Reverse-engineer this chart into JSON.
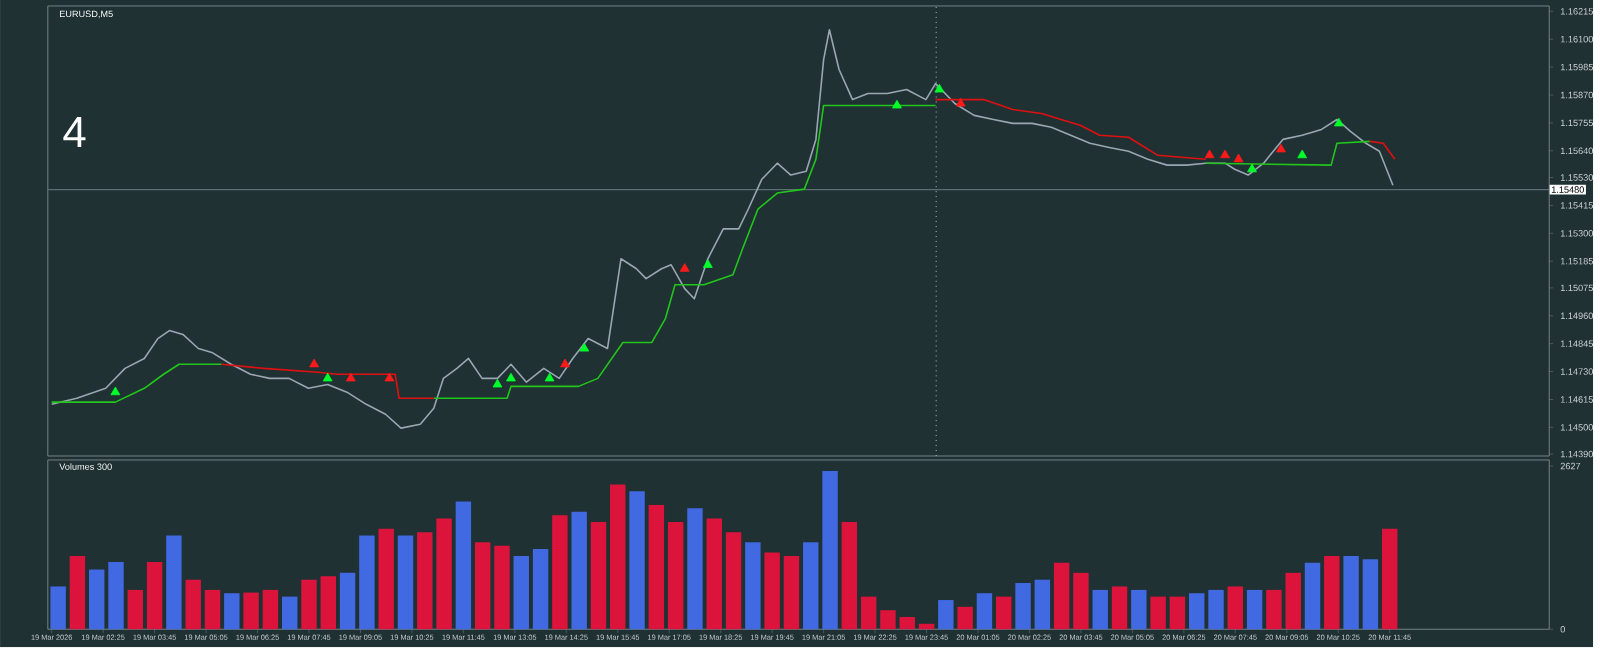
{
  "chart_data": [
    {
      "type": "line",
      "title": "EURUSD,M5",
      "annotations": [
        "4"
      ],
      "xlim": [
        "2026-03-19T00:59",
        "2026-03-20T15:53"
      ],
      "ylim": [
        1.14382,
        1.16237
      ],
      "tick_labels": "y",
      "yticks": [
        {
          "value": 1.16215,
          "label": "1.16215"
        },
        {
          "value": 1.161,
          "label": "1.16100"
        },
        {
          "value": 1.15985,
          "label": "1.15985"
        },
        {
          "value": 1.1587,
          "label": "1.15870"
        },
        {
          "value": 1.15755,
          "label": "1.15755"
        },
        {
          "value": 1.1564,
          "label": "1.15640"
        },
        {
          "value": 1.1553,
          "label": "1.15530"
        },
        {
          "value": 1.15415,
          "label": "1.15415"
        },
        {
          "value": 1.153,
          "label": "1.15300"
        },
        {
          "value": 1.15185,
          "label": "1.15185"
        },
        {
          "value": 1.15075,
          "label": "1.15075"
        },
        {
          "value": 1.1496,
          "label": "1.14960"
        },
        {
          "value": 1.14845,
          "label": "1.14845"
        },
        {
          "value": 1.1473,
          "label": "1.14730"
        },
        {
          "value": 1.14615,
          "label": "1.14615"
        },
        {
          "value": 1.145,
          "label": "1.14500"
        },
        {
          "value": 1.1439,
          "label": "1.14390"
        }
      ],
      "ref_lines": [
        {
          "axis": "y",
          "value": 1.1548,
          "label": "1.15480",
          "color": "#5a6e74"
        },
        {
          "axis": "x",
          "value": "2026-03-20T00:00",
          "color": "#b8c0c4",
          "line_style": "dotted"
        }
      ],
      "series": [
        {
          "type": "line",
          "color": "#9aa6b2",
          "x": [
            "2026-03-19T01:05",
            "2026-03-19T01:44",
            "2026-03-19T02:29",
            "2026-03-19T02:59",
            "2026-03-19T03:29",
            "2026-03-19T03:50",
            "2026-03-19T04:08",
            "2026-03-19T04:29",
            "2026-03-19T04:53",
            "2026-03-19T05:14",
            "2026-03-19T05:44",
            "2026-03-19T06:14",
            "2026-03-19T06:44",
            "2026-03-19T07:14",
            "2026-03-19T07:44",
            "2026-03-19T08:14",
            "2026-03-19T08:44",
            "2026-03-19T09:14",
            "2026-03-19T09:44",
            "2026-03-19T10:08",
            "2026-03-19T10:38",
            "2026-03-19T10:59",
            "2026-03-19T11:14",
            "2026-03-19T11:35",
            "2026-03-19T11:53",
            "2026-03-19T12:14",
            "2026-03-19T12:38",
            "2026-03-19T12:59",
            "2026-03-19T13:23",
            "2026-03-19T13:50",
            "2026-03-19T14:14",
            "2026-03-19T14:35",
            "2026-03-19T14:59",
            "2026-03-19T15:29",
            "2026-03-19T15:50",
            "2026-03-19T16:14",
            "2026-03-19T16:29",
            "2026-03-19T16:53",
            "2026-03-19T17:08",
            "2026-03-19T17:29",
            "2026-03-19T17:44",
            "2026-03-19T18:05",
            "2026-03-19T18:29",
            "2026-03-19T18:53",
            "2026-03-19T19:08",
            "2026-03-19T19:29",
            "2026-03-19T19:53",
            "2026-03-19T20:14",
            "2026-03-19T20:38",
            "2026-03-19T20:53",
            "2026-03-19T21:05",
            "2026-03-19T21:14",
            "2026-03-19T21:29",
            "2026-03-19T21:50",
            "2026-03-19T22:14",
            "2026-03-19T22:44",
            "2026-03-19T23:14",
            "2026-03-19T23:44",
            "2026-03-19T23:59",
            "2026-03-20T00:29",
            "2026-03-20T00:59",
            "2026-03-20T01:29",
            "2026-03-20T01:59",
            "2026-03-20T02:29",
            "2026-03-20T02:59",
            "2026-03-20T03:29",
            "2026-03-20T03:59",
            "2026-03-20T04:29",
            "2026-03-20T04:59",
            "2026-03-20T05:29",
            "2026-03-20T05:59",
            "2026-03-20T06:29",
            "2026-03-20T06:59",
            "2026-03-20T07:29",
            "2026-03-20T07:44",
            "2026-03-20T08:05",
            "2026-03-20T08:29",
            "2026-03-20T08:59",
            "2026-03-20T09:29",
            "2026-03-20T09:59",
            "2026-03-20T10:23",
            "2026-03-20T10:44",
            "2026-03-20T11:08",
            "2026-03-20T11:29",
            "2026-03-20T11:50"
          ],
          "values": [
            1.14595,
            1.1462,
            1.14661,
            1.14743,
            1.14784,
            1.14866,
            1.14899,
            1.14883,
            1.14825,
            1.14809,
            1.1476,
            1.14719,
            1.14702,
            1.14702,
            1.14661,
            1.14677,
            1.14645,
            1.14595,
            1.14554,
            1.14497,
            1.14513,
            1.14579,
            1.14702,
            1.14743,
            1.14784,
            1.14702,
            1.14702,
            1.1476,
            1.14686,
            1.14743,
            1.14702,
            1.14784,
            1.14866,
            1.14825,
            1.15195,
            1.15154,
            1.15113,
            1.15154,
            1.1517,
            1.15072,
            1.1503,
            1.15195,
            1.15318,
            1.15318,
            1.154,
            1.15523,
            1.15589,
            1.1554,
            1.15556,
            1.15687,
            1.16016,
            1.16139,
            1.15975,
            1.15851,
            1.15876,
            1.15876,
            1.15893,
            1.15851,
            1.15917,
            1.15835,
            1.15786,
            1.15769,
            1.15753,
            1.15753,
            1.15737,
            1.15704,
            1.15671,
            1.15654,
            1.15638,
            1.15605,
            1.15581,
            1.15581,
            1.15589,
            1.15589,
            1.15564,
            1.1554,
            1.15589,
            1.15687,
            1.15704,
            1.15728,
            1.15769,
            1.1572,
            1.15671,
            1.15638,
            1.15498
          ]
        },
        {
          "type": "line",
          "color": "#22c61a",
          "x": [
            "2026-03-19T01:05",
            "2026-03-19T02:44",
            "2026-03-19T03:29",
            "2026-03-19T03:59",
            "2026-03-19T04:23",
            "2026-03-19T05:29",
            "2026-03-19T08:00",
            "2026-03-19T10:59",
            "2026-03-19T12:53",
            "2026-03-19T12:59",
            "2026-03-19T14:44",
            "2026-03-19T15:14",
            "2026-03-19T15:53",
            "2026-03-19T16:38",
            "2026-03-19T16:59",
            "2026-03-19T17:14",
            "2026-03-19T17:59",
            "2026-03-19T18:44",
            "2026-03-19T18:59",
            "2026-03-19T19:23",
            "2026-03-19T19:53",
            "2026-03-19T20:35",
            "2026-03-19T20:53",
            "2026-03-19T21:05",
            "2026-03-19T23:59",
            "2026-03-20T03:00",
            "2026-03-20T06:59",
            "2026-03-20T10:14",
            "2026-03-20T10:23",
            "2026-03-20T11:14"
          ],
          "values": [
            1.14604,
            1.14604,
            1.14661,
            1.14719,
            1.1476,
            1.1476,
            null,
            1.1462,
            1.1462,
            1.14669,
            1.14669,
            1.14702,
            1.1485,
            1.1485,
            1.14948,
            1.15088,
            1.15088,
            1.15129,
            1.15236,
            1.154,
            1.15466,
            1.15482,
            1.15605,
            1.15827,
            1.15827,
            null,
            1.15589,
            1.15581,
            1.15671,
            1.15679
          ]
        },
        {
          "type": "line",
          "color": "#e01010",
          "x": [
            "2026-03-19T05:29",
            "2026-03-19T06:35",
            "2026-03-19T07:59",
            "2026-03-19T08:29",
            "2026-03-19T09:59",
            "2026-03-19T10:05",
            "2026-03-19T10:59",
            "2026-03-19T17:00",
            "2026-03-19T23:59",
            "2026-03-20T01:14",
            "2026-03-20T01:59",
            "2026-03-20T02:44",
            "2026-03-20T03:14",
            "2026-03-20T03:44",
            "2026-03-20T04:14",
            "2026-03-20T04:59",
            "2026-03-20T05:44",
            "2026-03-20T06:59",
            "2026-03-20T09:00",
            "2026-03-20T11:14",
            "2026-03-20T11:35",
            "2026-03-20T11:53"
          ],
          "values": [
            1.1476,
            1.14743,
            1.14727,
            1.14719,
            1.14719,
            1.1462,
            1.1462,
            null,
            1.15851,
            1.15851,
            1.1581,
            1.15794,
            1.15769,
            1.15745,
            1.15704,
            1.15696,
            1.15622,
            1.15605,
            null,
            1.15679,
            1.15671,
            1.15605
          ]
        },
        {
          "type": "scatter",
          "marker": "triangle",
          "color": "#00ff2a",
          "x": [
            "2026-03-19T02:44",
            "2026-03-19T08:14",
            "2026-03-19T12:38",
            "2026-03-19T12:59",
            "2026-03-19T13:59",
            "2026-03-19T14:53",
            "2026-03-19T18:05",
            "2026-03-19T22:59",
            "2026-03-20T00:05",
            "2026-03-20T08:11",
            "2026-03-20T09:29",
            "2026-03-20T10:26"
          ],
          "values": [
            1.14645,
            1.14702,
            1.14677,
            1.14702,
            1.14702,
            1.14825,
            1.1517,
            1.15827,
            1.15893,
            1.15564,
            1.15622,
            1.15753
          ]
        },
        {
          "type": "scatter",
          "marker": "triangle",
          "color": "#ff1a1a",
          "x": [
            "2026-03-19T07:53",
            "2026-03-19T08:50",
            "2026-03-19T09:50",
            "2026-03-19T14:23",
            "2026-03-19T17:29",
            "2026-03-20T00:38",
            "2026-03-20T07:05",
            "2026-03-20T07:29",
            "2026-03-20T07:50",
            "2026-03-20T08:56"
          ],
          "values": [
            1.1476,
            1.14702,
            1.14702,
            1.1476,
            1.15154,
            1.15835,
            1.15622,
            1.15622,
            1.15605,
            1.15646
          ]
        }
      ]
    },
    {
      "type": "bar",
      "title": "Volumes 300",
      "xlim": [
        "2026-03-19T00:59",
        "2026-03-20T15:53"
      ],
      "ylim": [
        0,
        2725
      ],
      "yticks": [
        0,
        2627
      ],
      "xticks": [
        {
          "value": "2026-03-19T01:05",
          "label": "19 Mar 2026"
        },
        {
          "value": "2026-03-19T02:25",
          "label": "19 Mar 02:25"
        },
        {
          "value": "2026-03-19T03:45",
          "label": "19 Mar 03:45"
        },
        {
          "value": "2026-03-19T05:05",
          "label": "19 Mar 05:05"
        },
        {
          "value": "2026-03-19T06:25",
          "label": "19 Mar 06:25"
        },
        {
          "value": "2026-03-19T07:45",
          "label": "19 Mar 07:45"
        },
        {
          "value": "2026-03-19T09:05",
          "label": "19 Mar 09:05"
        },
        {
          "value": "2026-03-19T10:25",
          "label": "19 Mar 10:25"
        },
        {
          "value": "2026-03-19T11:45",
          "label": "19 Mar 11:45"
        },
        {
          "value": "2026-03-19T13:05",
          "label": "19 Mar 13:05"
        },
        {
          "value": "2026-03-19T14:25",
          "label": "19 Mar 14:25"
        },
        {
          "value": "2026-03-19T15:45",
          "label": "19 Mar 15:45"
        },
        {
          "value": "2026-03-19T17:05",
          "label": "19 Mar 17:05"
        },
        {
          "value": "2026-03-19T18:25",
          "label": "19 Mar 18:25"
        },
        {
          "value": "2026-03-19T19:45",
          "label": "19 Mar 19:45"
        },
        {
          "value": "2026-03-19T21:05",
          "label": "19 Mar 21:05"
        },
        {
          "value": "2026-03-19T22:25",
          "label": "19 Mar 22:25"
        },
        {
          "value": "2026-03-19T23:45",
          "label": "19 Mar 23:45"
        },
        {
          "value": "2026-03-20T01:05",
          "label": "20 Mar 01:05"
        },
        {
          "value": "2026-03-20T02:25",
          "label": "20 Mar 02:25"
        },
        {
          "value": "2026-03-20T03:45",
          "label": "20 Mar 03:45"
        },
        {
          "value": "2026-03-20T05:05",
          "label": "20 Mar 05:05"
        },
        {
          "value": "2026-03-20T06:25",
          "label": "20 Mar 06:25"
        },
        {
          "value": "2026-03-20T07:45",
          "label": "20 Mar 07:45"
        },
        {
          "value": "2026-03-20T09:05",
          "label": "20 Mar 09:05"
        },
        {
          "value": "2026-03-20T10:25",
          "label": "20 Mar 10:25"
        },
        {
          "value": "2026-03-20T11:45",
          "label": "20 Mar 11:45"
        }
      ],
      "x": [
        "2026-03-19T01:15",
        "2026-03-19T01:45",
        "2026-03-19T02:15",
        "2026-03-19T02:45",
        "2026-03-19T03:15",
        "2026-03-19T03:45",
        "2026-03-19T04:15",
        "2026-03-19T04:45",
        "2026-03-19T05:15",
        "2026-03-19T05:45",
        "2026-03-19T06:15",
        "2026-03-19T06:45",
        "2026-03-19T07:15",
        "2026-03-19T07:45",
        "2026-03-19T08:15",
        "2026-03-19T08:45",
        "2026-03-19T09:15",
        "2026-03-19T09:45",
        "2026-03-19T10:15",
        "2026-03-19T10:45",
        "2026-03-19T11:15",
        "2026-03-19T11:45",
        "2026-03-19T12:15",
        "2026-03-19T12:45",
        "2026-03-19T13:15",
        "2026-03-19T13:45",
        "2026-03-19T14:15",
        "2026-03-19T14:45",
        "2026-03-19T15:15",
        "2026-03-19T15:45",
        "2026-03-19T16:15",
        "2026-03-19T16:45",
        "2026-03-19T17:15",
        "2026-03-19T17:45",
        "2026-03-19T18:15",
        "2026-03-19T18:45",
        "2026-03-19T19:15",
        "2026-03-19T19:45",
        "2026-03-19T20:15",
        "2026-03-19T20:45",
        "2026-03-19T21:15",
        "2026-03-19T21:45",
        "2026-03-19T22:15",
        "2026-03-19T22:45",
        "2026-03-19T23:15",
        "2026-03-19T23:45",
        "2026-03-20T00:15",
        "2026-03-20T00:45",
        "2026-03-20T01:15",
        "2026-03-20T01:45",
        "2026-03-20T02:15",
        "2026-03-20T02:45",
        "2026-03-20T03:15",
        "2026-03-20T03:45",
        "2026-03-20T04:15",
        "2026-03-20T04:45",
        "2026-03-20T05:15",
        "2026-03-20T05:45",
        "2026-03-20T06:15",
        "2026-03-20T06:45",
        "2026-03-20T07:15",
        "2026-03-20T07:45",
        "2026-03-20T08:15",
        "2026-03-20T08:45",
        "2026-03-20T09:15",
        "2026-03-20T09:45",
        "2026-03-20T10:15",
        "2026-03-20T10:45",
        "2026-03-20T11:15",
        "2026-03-20T11:45"
      ],
      "values": [
        689,
        1181,
        961,
        1083,
        633,
        1083,
        1509,
        797,
        633,
        580,
        590,
        633,
        525,
        797,
        853,
        908,
        1509,
        1617,
        1509,
        1563,
        1781,
        2056,
        1400,
        1345,
        1181,
        1290,
        1837,
        1892,
        1728,
        2329,
        2220,
        2001,
        1728,
        1946,
        1781,
        1563,
        1400,
        1236,
        1181,
        1400,
        2548,
        1728,
        525,
        306,
        197,
        88,
        470,
        361,
        580,
        525,
        744,
        797,
        1072,
        908,
        633,
        689,
        633,
        525,
        525,
        580,
        633,
        689,
        633,
        633,
        908,
        1072,
        1181,
        1181,
        1126,
        1617
      ],
      "colors": [
        "#4169e1",
        "#dc143c",
        "#4169e1",
        "#4169e1",
        "#dc143c",
        "#dc143c",
        "#4169e1",
        "#dc143c",
        "#dc143c",
        "#4169e1",
        "#dc143c",
        "#dc143c",
        "#4169e1",
        "#dc143c",
        "#dc143c",
        "#4169e1",
        "#4169e1",
        "#dc143c",
        "#4169e1",
        "#dc143c",
        "#dc143c",
        "#4169e1",
        "#dc143c",
        "#dc143c",
        "#4169e1",
        "#4169e1",
        "#dc143c",
        "#4169e1",
        "#dc143c",
        "#dc143c",
        "#4169e1",
        "#dc143c",
        "#dc143c",
        "#4169e1",
        "#dc143c",
        "#dc143c",
        "#4169e1",
        "#dc143c",
        "#dc143c",
        "#4169e1",
        "#4169e1",
        "#dc143c",
        "#dc143c",
        "#dc143c",
        "#dc143c",
        "#dc143c",
        "#4169e1",
        "#dc143c",
        "#4169e1",
        "#dc143c",
        "#4169e1",
        "#4169e1",
        "#dc143c",
        "#dc143c",
        "#4169e1",
        "#dc143c",
        "#4169e1",
        "#dc143c",
        "#dc143c",
        "#4169e1",
        "#4169e1",
        "#dc143c",
        "#4169e1",
        "#dc143c",
        "#dc143c",
        "#4169e1",
        "#dc143c",
        "#4169e1",
        "#4169e1",
        "#dc143c"
      ]
    }
  ]
}
